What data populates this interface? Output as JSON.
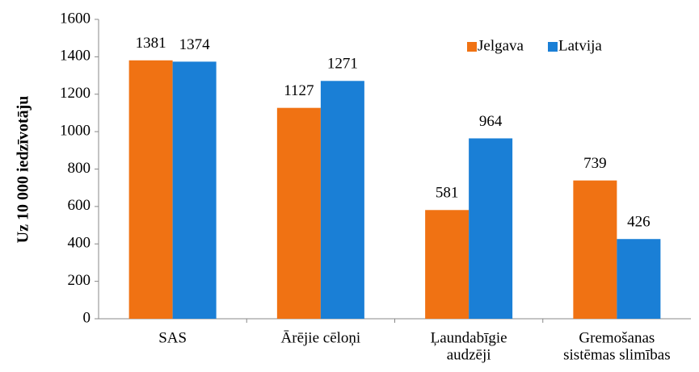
{
  "chart_data": {
    "type": "bar",
    "y_label": "Uz 10 000 iedzīvotāju",
    "categories": [
      [
        "SAS"
      ],
      [
        "Ārējie cēloņi"
      ],
      [
        "Ļaundabīgie",
        "audzēji"
      ],
      [
        "Gremošanas",
        "sistēmas slimības"
      ]
    ],
    "series": [
      {
        "name": "Jelgava",
        "color": "#f07213",
        "values": [
          1381,
          1127,
          581,
          739
        ]
      },
      {
        "name": "Latvija",
        "color": "#1a7fd6",
        "values": [
          1374,
          1271,
          964,
          426
        ]
      }
    ],
    "ylim": [
      0,
      1600
    ],
    "yticks": [
      0,
      200,
      400,
      600,
      800,
      1000,
      1200,
      1400,
      1600
    ],
    "legend": "top-right"
  }
}
